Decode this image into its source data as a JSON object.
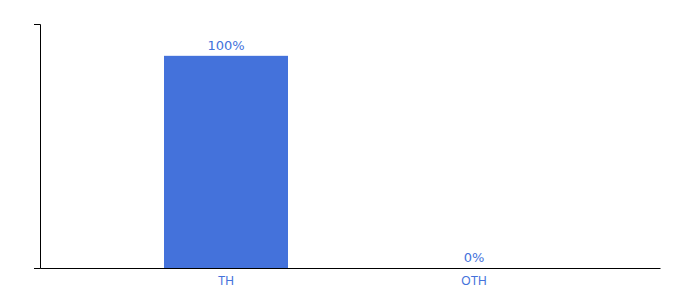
{
  "chart_data": {
    "type": "bar",
    "categories": [
      "TH",
      "OTH"
    ],
    "values": [
      100,
      0
    ],
    "value_labels": [
      "100%",
      "0%"
    ],
    "data_labels": true,
    "color": "#4472db",
    "ylim": [
      0,
      115
    ],
    "yticks": [],
    "tick_labels": "x",
    "grid": false
  }
}
